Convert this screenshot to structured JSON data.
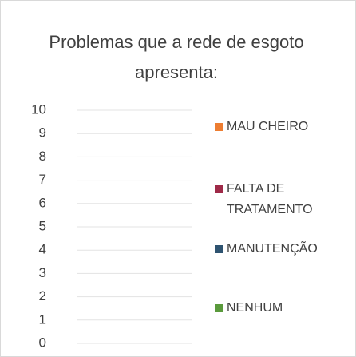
{
  "chart_data": {
    "type": "bar",
    "title": "Problemas que a rede de esgoto apresenta:",
    "categories": [],
    "series": [
      {
        "name": "MAU CHEIRO",
        "color": "#ed7d31",
        "values": []
      },
      {
        "name": "FALTA DE TRATAMENTO",
        "color": "#9e2a48",
        "values": []
      },
      {
        "name": "MANUTENÇÃO",
        "color": "#2e5370",
        "values": []
      },
      {
        "name": "NENHUM",
        "color": "#5a9a3c",
        "values": []
      }
    ],
    "ylim": [
      0,
      10
    ],
    "yticks": [
      0,
      1,
      2,
      3,
      4,
      5,
      6,
      7,
      8,
      9,
      10
    ],
    "grid": true,
    "legend": "right"
  }
}
